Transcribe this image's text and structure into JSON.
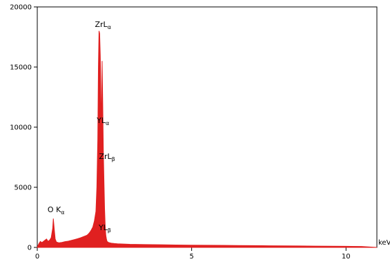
{
  "chart_data": {
    "type": "area",
    "xlabel": "keV",
    "ylabel": "",
    "title": "",
    "xlim": [
      0,
      11.0
    ],
    "ylim": [
      0,
      20000
    ],
    "x_ticks": [
      {
        "value": 0,
        "label": "0"
      },
      {
        "value": 5,
        "label": "5"
      },
      {
        "value": 10,
        "label": "10"
      }
    ],
    "y_ticks": [
      {
        "value": 0,
        "label": "0"
      },
      {
        "value": 5000,
        "label": "5000"
      },
      {
        "value": 10000,
        "label": "10000"
      },
      {
        "value": 15000,
        "label": "15000"
      },
      {
        "value": 20000,
        "label": "20000"
      }
    ],
    "color": "#e02020",
    "grid": false,
    "series": [
      {
        "x": [
          0.0,
          0.05,
          0.1,
          0.15,
          0.2,
          0.25,
          0.3,
          0.35,
          0.4,
          0.45,
          0.5,
          0.52,
          0.55,
          0.58,
          0.62,
          0.7,
          0.8,
          0.9,
          1.0,
          1.1,
          1.2,
          1.3,
          1.4,
          1.5,
          1.6,
          1.65,
          1.7,
          1.75,
          1.8,
          1.85,
          1.9,
          1.93,
          1.96,
          1.98,
          2.0,
          2.02,
          2.04,
          2.06,
          2.08,
          2.1,
          2.12,
          2.14,
          2.16,
          2.18,
          2.2,
          2.22,
          2.24,
          2.26,
          2.3,
          2.35,
          2.4,
          2.5,
          2.6,
          2.8,
          3.0,
          3.5,
          4.0,
          4.5,
          5.0,
          5.5,
          6.0,
          6.5,
          7.0,
          7.5,
          8.0,
          8.5,
          9.0,
          9.5,
          10.0,
          10.5,
          11.0
        ],
        "y": [
          0,
          300,
          500,
          400,
          500,
          600,
          700,
          500,
          600,
          800,
          1600,
          2400,
          1500,
          700,
          450,
          380,
          420,
          480,
          520,
          580,
          650,
          720,
          800,
          900,
          1000,
          1100,
          1250,
          1450,
          1700,
          2200,
          3000,
          5000,
          9000,
          15000,
          18000,
          17800,
          16000,
          13000,
          9500,
          15500,
          12000,
          8000,
          5500,
          3200,
          1800,
          1000,
          700,
          500,
          420,
          380,
          350,
          320,
          300,
          280,
          260,
          240,
          220,
          200,
          190,
          180,
          170,
          160,
          150,
          140,
          130,
          120,
          110,
          100,
          90,
          80,
          0
        ]
      }
    ],
    "annotations": [
      {
        "main": "ZrL",
        "sub": "α",
        "x": 2.04,
        "y": 18000
      },
      {
        "main": "YL",
        "sub": "α",
        "x": 2.04,
        "y": 10000
      },
      {
        "main": "ZrL",
        "sub": "β",
        "x": 2.17,
        "y": 7000
      },
      {
        "main": "O K",
        "sub": "α",
        "x": 0.52,
        "y": 2600
      },
      {
        "main": "YL",
        "sub": "β",
        "x": 2.1,
        "y": 1100
      }
    ]
  }
}
